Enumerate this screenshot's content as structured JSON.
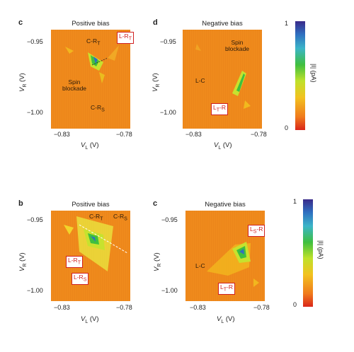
{
  "panels": [
    {
      "letter": "c",
      "title": "Positive bias",
      "yticks": [
        "−0.95",
        "−1.00"
      ],
      "xticks": [
        "−0.83",
        "−0.78"
      ],
      "xlabel": "V_L (V)",
      "ylabel": "V_R (V)",
      "labels": {
        "cr": "C-R",
        "cr_sub": "T",
        "lr": "L-R",
        "lr_sub": "T",
        "spin": "Spin",
        "blockade": "blockade",
        "crs": "C-R",
        "crs_sub": "S"
      }
    },
    {
      "letter": "d",
      "title": "Negative bias",
      "yticks": [
        "−0.95",
        "−1.00"
      ],
      "xticks": [
        "−0.83",
        "−0.78"
      ],
      "xlabel": "V_L (V)",
      "ylabel": "V_R (V)",
      "labels": {
        "spin": "Spin",
        "blockade": "blockade",
        "lc": "L-C",
        "ltr": "L",
        "ltr_sub": "T",
        "ltr_rest": "-R"
      }
    },
    {
      "letter": "b",
      "title": "Positive bias",
      "yticks": [
        "−0.95",
        "−1.00"
      ],
      "xticks": [
        "−0.83",
        "−0.78"
      ],
      "xlabel": "V_L (V)",
      "ylabel": "V_R (V)",
      "labels": {
        "crt": "C-R",
        "crt_sub": "T",
        "crs": "C-R",
        "crs_sub": "S",
        "lrt": "L-R",
        "lrt_sub": "T",
        "lrs": "L-R",
        "lrs_sub": "S"
      }
    },
    {
      "letter": "c",
      "title": "Negative bias",
      "yticks": [
        "−0.95",
        "−1.00"
      ],
      "xticks": [
        "−0.83",
        "−0.78"
      ],
      "xlabel": "V_L (V)",
      "ylabel": "V_R (V)",
      "labels": {
        "lsr": "L",
        "lsr_sub": "S",
        "lsr_rest": "-R",
        "lc": "L-C",
        "ltr": "L",
        "ltr_sub": "T",
        "ltr_rest": "-R"
      }
    }
  ],
  "colorbars": [
    {
      "max": "1",
      "min": "0",
      "label": "|I| (pA)"
    },
    {
      "max": "1",
      "min": "0",
      "label": "|I| (pA)"
    }
  ],
  "colors": {
    "background_map": "#ef8a1c",
    "low": "#d42a10",
    "high": "#3a2a8a"
  }
}
